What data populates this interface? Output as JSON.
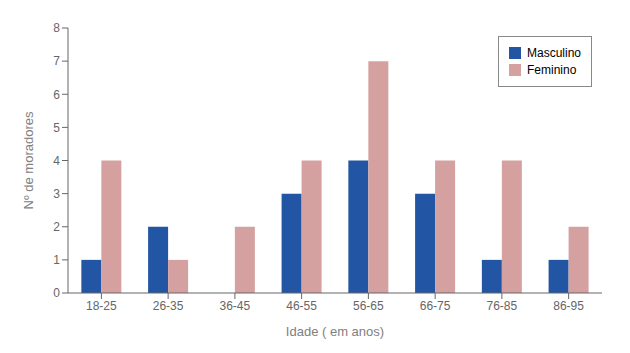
{
  "chart_data": {
    "type": "bar",
    "categories": [
      "18-25",
      "26-35",
      "36-45",
      "46-55",
      "56-65",
      "66-75",
      "76-85",
      "86-95"
    ],
    "series": [
      {
        "name": "Masculino",
        "color": "#2255A4",
        "values": [
          1,
          2,
          0,
          3,
          4,
          3,
          1,
          1
        ]
      },
      {
        "name": "Feminino",
        "color": "#D4A0A0",
        "values": [
          4,
          1,
          2,
          4,
          7,
          4,
          4,
          2
        ]
      }
    ],
    "xlabel": "Idade ( em anos)",
    "ylabel": "Nº de moradores",
    "ylim": [
      0,
      8
    ],
    "yticks": [
      0,
      1,
      2,
      3,
      4,
      5,
      6,
      7,
      8
    ],
    "grid": false,
    "legend": "upper right"
  }
}
